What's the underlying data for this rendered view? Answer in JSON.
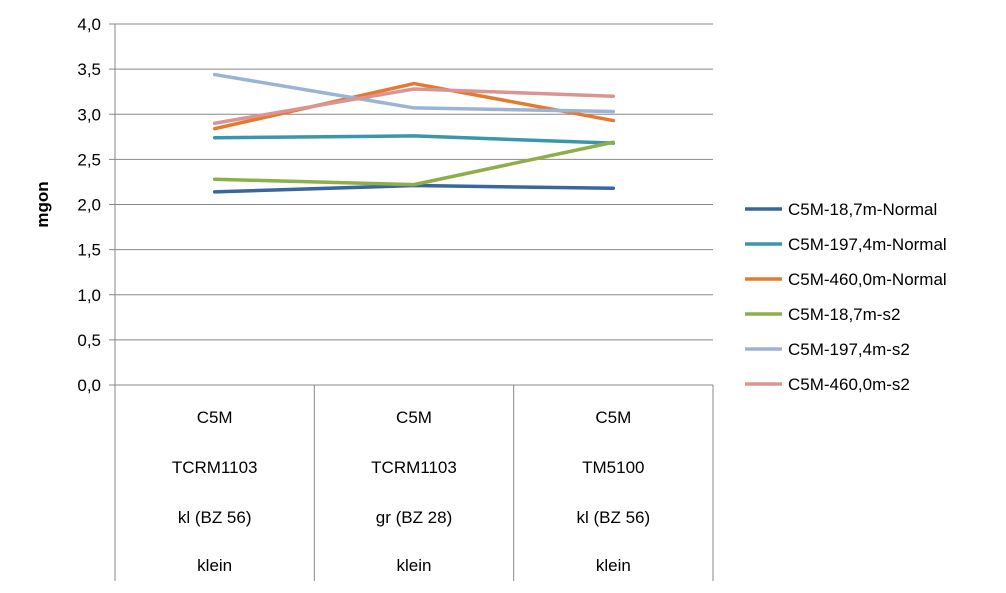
{
  "chart_data": {
    "type": "line",
    "title": "",
    "xlabel": "",
    "ylabel": "mgon",
    "ylim": [
      0,
      4
    ],
    "ytick_step": 0.5,
    "ytick_labels": [
      "0,0",
      "0,5",
      "1,0",
      "1,5",
      "2,0",
      "2,5",
      "3,0",
      "3,5",
      "4,0"
    ],
    "grid": true,
    "legend_position": "right",
    "categories": [
      [
        "C5M",
        "TCRM1103",
        "kl (BZ 56)",
        "klein"
      ],
      [
        "C5M",
        "TCRM1103",
        "gr (BZ 28)",
        "klein"
      ],
      [
        "C5M",
        "TM5100",
        "kl (BZ 56)",
        "klein"
      ]
    ],
    "series": [
      {
        "name": "C5M-18,7m-Normal",
        "color": "#3a66a0",
        "values": [
          2.14,
          2.21,
          2.18
        ]
      },
      {
        "name": "C5M-197,4m-Normal",
        "color": "#3a97ab",
        "values": [
          2.74,
          2.76,
          2.68
        ]
      },
      {
        "name": "C5M-460,0m-Normal",
        "color": "#e47a2e",
        "values": [
          2.84,
          3.34,
          2.93
        ]
      },
      {
        "name": "C5M-18,7m-s2",
        "color": "#8eae4a",
        "values": [
          2.28,
          2.22,
          2.69
        ]
      },
      {
        "name": "C5M-197,4m-s2",
        "color": "#9cb3d6",
        "values": [
          3.44,
          3.07,
          3.03
        ]
      },
      {
        "name": "C5M-460,0m-s2",
        "color": "#d99594",
        "values": [
          2.9,
          3.28,
          3.2
        ]
      }
    ]
  }
}
